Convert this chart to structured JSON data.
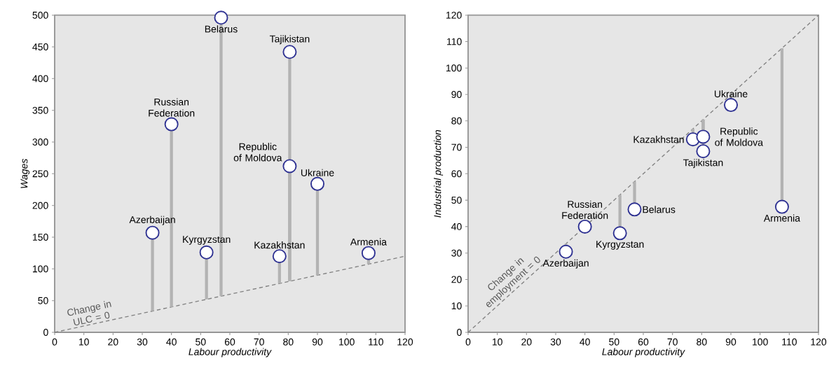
{
  "chart_data": [
    {
      "type": "scatter",
      "xlabel": "Labour productivity",
      "ylabel": "Wages",
      "xlim": [
        0,
        120
      ],
      "ylim": [
        0,
        500
      ],
      "xticks": [
        0,
        10,
        20,
        30,
        40,
        50,
        60,
        70,
        80,
        90,
        100,
        110,
        120
      ],
      "yticks": [
        0,
        50,
        100,
        150,
        200,
        250,
        300,
        350,
        400,
        450,
        500
      ],
      "series": [
        {
          "type": "line",
          "color": "#808080",
          "line_style": "dashed",
          "x": [
            0,
            120
          ],
          "values": [
            0,
            120
          ]
        },
        {
          "color": "#2e3192",
          "marker": "circle",
          "x": [
            33.5,
            40,
            52,
            57,
            77,
            80.5,
            80.5,
            90,
            107.5
          ],
          "values": [
            157,
            328,
            126,
            496,
            120,
            262,
            442,
            234,
            125
          ],
          "errors": [
            [
              33.5,
              157
            ],
            [
              40,
              328
            ],
            [
              52,
              126
            ],
            [
              57,
              496
            ],
            [
              77,
              120
            ],
            [
              80.5,
              262
            ],
            [
              80.5,
              442
            ],
            [
              90,
              234
            ],
            [
              107.5,
              125
            ]
          ]
        }
      ],
      "annotations": [
        {
          "text": "Azerbaijan",
          "x": 33.5,
          "y": 157
        },
        {
          "text": "Russian Federation",
          "x": 40,
          "y": 328
        },
        {
          "text": "Kyrgyzstan",
          "x": 52,
          "y": 126
        },
        {
          "text": "Belarus",
          "x": 57,
          "y": 496
        },
        {
          "text": "Kazakhstan",
          "x": 77,
          "y": 120
        },
        {
          "text": "Republic of Moldova",
          "x": 80.5,
          "y": 262
        },
        {
          "text": "Tajikistan",
          "x": 80.5,
          "y": 442
        },
        {
          "text": "Ukraine",
          "x": 90,
          "y": 234
        },
        {
          "text": "Armenia",
          "x": 107.5,
          "y": 125
        },
        {
          "text": "Change in ULC = 0",
          "x": 13,
          "y": 13
        }
      ]
    },
    {
      "type": "scatter",
      "xlabel": "Labour productivity",
      "ylabel": "Industrial production",
      "xlim": [
        0,
        120
      ],
      "ylim": [
        0,
        120
      ],
      "xticks": [
        0,
        10,
        20,
        30,
        40,
        50,
        60,
        70,
        80,
        90,
        100,
        110,
        120
      ],
      "yticks": [
        0,
        10,
        20,
        30,
        40,
        50,
        60,
        70,
        80,
        90,
        100,
        110,
        120
      ],
      "series": [
        {
          "type": "line",
          "color": "#808080",
          "line_style": "dashed",
          "x": [
            0,
            120
          ],
          "values": [
            0,
            120
          ]
        },
        {
          "color": "#2e3192",
          "marker": "circle",
          "x": [
            33.5,
            40,
            52,
            57,
            77,
            80.5,
            80.5,
            90,
            107.5
          ],
          "values": [
            30.5,
            40,
            37.5,
            46.5,
            73,
            74,
            68.5,
            86,
            47.5
          ],
          "errors": [
            [
              30.5,
              33.5
            ],
            [
              40,
              40
            ],
            [
              37.5,
              52
            ],
            [
              46.5,
              57
            ],
            [
              73,
              77
            ],
            [
              74,
              80.5
            ],
            [
              68.5,
              80.5
            ],
            [
              86,
              90
            ],
            [
              47.5,
              107.5
            ]
          ]
        }
      ],
      "annotations": [
        {
          "text": "Azerbaijan",
          "x": 33.5,
          "y": 30.5
        },
        {
          "text": "Russian Federation",
          "x": 40,
          "y": 40
        },
        {
          "text": "Kyrgyzstan",
          "x": 52,
          "y": 37.5
        },
        {
          "text": "Belarus",
          "x": 57,
          "y": 46.5
        },
        {
          "text": "Kazakhstan",
          "x": 77,
          "y": 73
        },
        {
          "text": "Republic of Moldova",
          "x": 80.5,
          "y": 74
        },
        {
          "text": "Tajikistan",
          "x": 80.5,
          "y": 68.5
        },
        {
          "text": "Ukraine",
          "x": 90,
          "y": 86
        },
        {
          "text": "Armenia",
          "x": 107.5,
          "y": 47.5
        },
        {
          "text": "Change in employment = 0",
          "x": 17,
          "y": 17
        }
      ]
    }
  ]
}
